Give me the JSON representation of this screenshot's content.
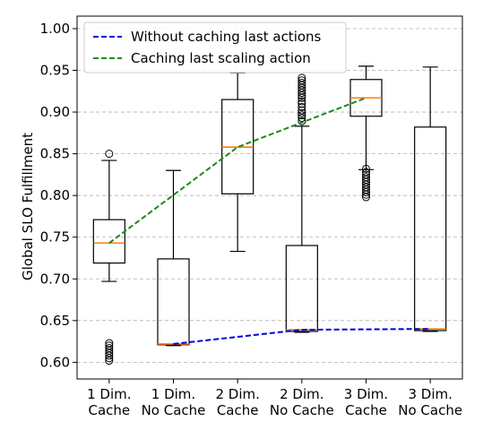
{
  "chart_data": {
    "type": "box",
    "title": "",
    "xlabel": "",
    "ylabel": "Global SLO Fulfillment",
    "ylim": [
      0.58,
      1.015
    ],
    "yticks": [
      "0.60",
      "0.65",
      "0.70",
      "0.75",
      "0.80",
      "0.85",
      "0.90",
      "0.95",
      "1.00"
    ],
    "grid": "y-dashed",
    "categories": [
      [
        "1 Dim.",
        "Cache"
      ],
      [
        "1 Dim.",
        "No Cache"
      ],
      [
        "2 Dim.",
        "Cache"
      ],
      [
        "2 Dim.",
        "No Cache"
      ],
      [
        "3 Dim.",
        "Cache"
      ],
      [
        "3 Dim.",
        "No Cache"
      ]
    ],
    "boxes": [
      {
        "whislo": 0.697,
        "q1": 0.719,
        "med": 0.743,
        "q3": 0.771,
        "whishi": 0.842,
        "fliers": [
          0.85,
          0.623,
          0.62,
          0.617,
          0.614,
          0.611,
          0.608,
          0.605,
          0.602
        ]
      },
      {
        "whislo": 0.62,
        "q1": 0.621,
        "med": 0.622,
        "q3": 0.724,
        "whishi": 0.83,
        "fliers": []
      },
      {
        "whislo": 0.733,
        "q1": 0.802,
        "med": 0.858,
        "q3": 0.915,
        "whishi": 0.947,
        "fliers": []
      },
      {
        "whislo": 0.636,
        "q1": 0.637,
        "med": 0.639,
        "q3": 0.74,
        "whishi": 0.883,
        "fliers": [
          0.889,
          0.893,
          0.896,
          0.899,
          0.902,
          0.906,
          0.91,
          0.913,
          0.917,
          0.92,
          0.923,
          0.926,
          0.929,
          0.932,
          0.935,
          0.938,
          0.941
        ]
      },
      {
        "whislo": 0.831,
        "q1": 0.895,
        "med": 0.917,
        "q3": 0.939,
        "whishi": 0.955,
        "fliers": [
          0.832,
          0.828,
          0.825,
          0.822,
          0.819,
          0.816,
          0.813,
          0.81,
          0.807,
          0.804,
          0.801,
          0.798
        ]
      },
      {
        "whislo": 0.637,
        "q1": 0.638,
        "med": 0.64,
        "q3": 0.882,
        "whishi": 0.954,
        "fliers": []
      }
    ],
    "series": [
      {
        "name": "Without caching last actions",
        "color": "#0000dd",
        "style": "dashed",
        "positions": [
          2,
          4,
          6
        ],
        "values": [
          0.622,
          0.639,
          0.64
        ]
      },
      {
        "name": "Caching last scaling action",
        "color": "#1a8a1a",
        "style": "dashed",
        "positions": [
          1,
          3,
          5
        ],
        "values": [
          0.743,
          0.858,
          0.917
        ]
      }
    ],
    "colors": {
      "box": "#000000",
      "median": "#ff7f0e"
    },
    "legend": "top-left"
  }
}
